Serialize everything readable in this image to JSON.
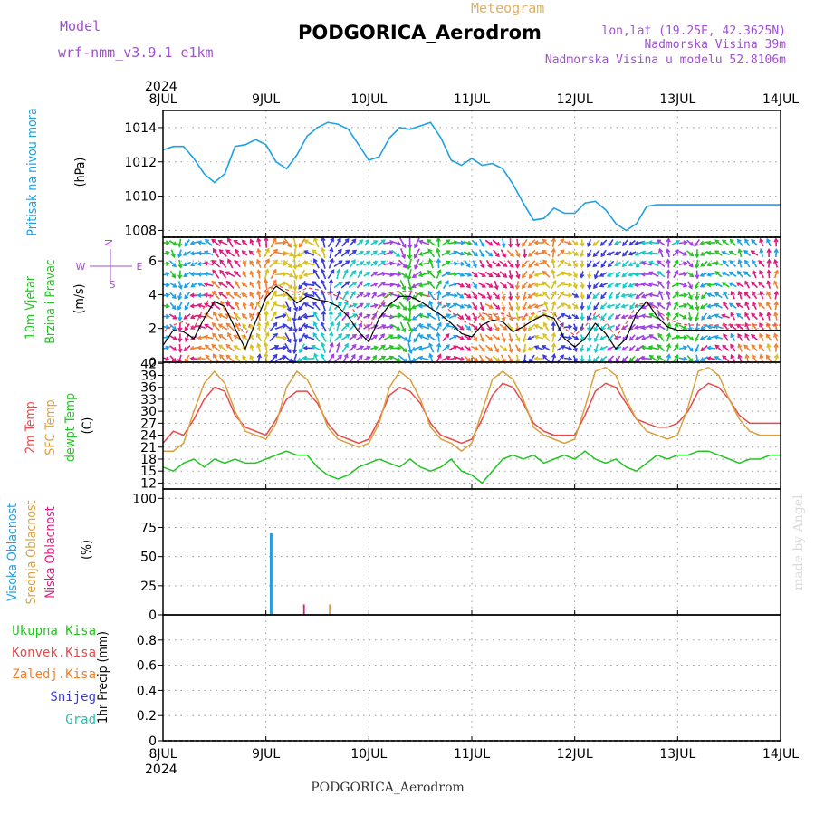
{
  "header": {
    "model_label": "Model",
    "model_name": "wrf-nmm_v3.9.1 e1km",
    "meteogram_label": "Meteogram",
    "station_title": "PODGORICA_Aerodrom",
    "lonlat": "lon,lat (19.25E, 42.3625N)",
    "elevation": "Nadmorska Visina 39m",
    "model_elevation": "Nadmorska Visina u modelu 52.8106m"
  },
  "footer": {
    "station": "PODGORICA_Aerodrom",
    "credit": "made by Angel"
  },
  "time_axis": {
    "year": "2024",
    "ticks": [
      "8JUL",
      "9JUL",
      "10JUL",
      "11JUL",
      "12JUL",
      "13JUL",
      "14JUL"
    ]
  },
  "colors": {
    "pressure": "#1ea0e6",
    "temp2m": "#e84a4a",
    "sfc_temp": "#d9a040",
    "dewpt": "#22c422",
    "wind_speed": "#000000",
    "wind_gust": "#e84a4a",
    "high_cloud": "#1ea0e6",
    "mid_cloud": "#d9a040",
    "low_cloud": "#e0197d",
    "total_precip": "#22c422",
    "conv_precip": "#e84a4a",
    "frz_precip": "#f08030",
    "snow": "#3a3ad8",
    "graupel": "#22c0b0",
    "header_purple": "#a050d0",
    "header_orange": "#e0b060"
  },
  "chart_data": [
    {
      "panel": "pressure",
      "type": "line",
      "ylabel": [
        "Pritisak na nivou mora",
        "(hPa)"
      ],
      "ylim": [
        1007.6,
        1015.0
      ],
      "yticks": [
        1008,
        1010,
        1012,
        1014
      ],
      "x": [
        0,
        0.1,
        0.2,
        0.3,
        0.4,
        0.5,
        0.6,
        0.7,
        0.8,
        0.9,
        1.0,
        1.1,
        1.2,
        1.3,
        1.4,
        1.5,
        1.6,
        1.7,
        1.8,
        1.9,
        2.0,
        2.1,
        2.2,
        2.3,
        2.4,
        2.5,
        2.6,
        2.7,
        2.8,
        2.9,
        3.0,
        3.1,
        3.2,
        3.3,
        3.4,
        3.5,
        3.6,
        3.7,
        3.8,
        3.9,
        4.0,
        4.1,
        4.2,
        4.3,
        4.4,
        4.5,
        4.6,
        4.7,
        4.8,
        4.9,
        5.0,
        5.1,
        5.2,
        5.3,
        5.4,
        5.5,
        5.6,
        5.7,
        5.8,
        5.9,
        6.0
      ],
      "y": [
        1012.7,
        1012.9,
        1012.9,
        1012.2,
        1011.3,
        1010.8,
        1011.3,
        1012.9,
        1013.0,
        1013.3,
        1013.0,
        1012.0,
        1011.6,
        1012.4,
        1013.5,
        1014.0,
        1014.3,
        1014.2,
        1013.9,
        1013.0,
        1012.1,
        1012.3,
        1013.4,
        1014.0,
        1013.9,
        1014.1,
        1014.3,
        1013.4,
        1012.1,
        1011.8,
        1012.2,
        1011.8,
        1011.9,
        1011.6,
        1010.7,
        1009.6,
        1008.6,
        1008.7,
        1009.3,
        1009.0,
        1009.0,
        1009.6,
        1009.7,
        1009.2,
        1008.4,
        1008.0,
        1008.4,
        1009.4,
        1009.5,
        1009.5,
        1009.5,
        1009.5,
        1009.5,
        1009.5,
        1009.5,
        1009.5,
        1009.5,
        1009.5,
        1009.5,
        1009.5,
        1009.5
      ]
    },
    {
      "panel": "wind",
      "type": "line",
      "ylabel": [
        "10m Vjetar",
        "Brzina i Pravac",
        "(m/s)"
      ],
      "compass": {
        "n": "N",
        "s": "S",
        "e": "E",
        "w": "W"
      },
      "ylim": [
        0,
        7.4
      ],
      "yticks": [
        0,
        2,
        4,
        6
      ],
      "x": [
        0,
        0.1,
        0.2,
        0.3,
        0.4,
        0.5,
        0.6,
        0.7,
        0.8,
        0.9,
        1.0,
        1.1,
        1.2,
        1.3,
        1.4,
        1.5,
        1.6,
        1.7,
        1.8,
        1.9,
        2.0,
        2.1,
        2.2,
        2.3,
        2.4,
        2.5,
        2.6,
        2.7,
        2.8,
        2.9,
        3.0,
        3.1,
        3.2,
        3.3,
        3.4,
        3.5,
        3.6,
        3.7,
        3.8,
        3.9,
        4.0,
        4.1,
        4.2,
        4.3,
        4.4,
        4.5,
        4.6,
        4.7,
        4.8,
        4.9,
        5.0,
        5.1,
        5.2,
        5.3,
        5.4,
        5.5,
        5.6,
        5.7,
        5.8,
        5.9,
        6.0
      ],
      "speed": [
        1.0,
        1.9,
        1.8,
        1.4,
        2.6,
        3.6,
        3.3,
        2.0,
        0.8,
        2.4,
        3.8,
        4.5,
        4.1,
        3.5,
        3.9,
        3.7,
        3.6,
        3.3,
        2.7,
        1.8,
        1.2,
        2.6,
        3.4,
        3.9,
        3.9,
        3.6,
        3.2,
        2.8,
        2.3,
        1.7,
        1.5,
        2.2,
        2.5,
        2.4,
        1.8,
        2.1,
        2.5,
        2.8,
        2.6,
        1.4,
        0.9,
        1.4,
        2.3,
        1.7,
        0.8,
        1.4,
        2.9,
        3.6,
        2.7,
        2.1,
        1.9,
        1.9,
        1.9,
        1.9,
        1.9,
        1.9,
        1.9,
        1.9,
        1.9,
        1.9,
        1.9
      ],
      "gust": [
        1.8,
        2.2,
        2.4,
        2.0,
        3.3,
        4.2,
        4.0,
        2.8,
        1.5,
        3.2,
        4.3,
        4.6,
        4.3,
        4.1,
        4.4,
        4.3,
        4.1,
        3.9,
        3.6,
        2.6,
        1.9,
        3.3,
        4.1,
        4.2,
        4.2,
        4.0,
        3.9,
        3.5,
        3.0,
        2.5,
        2.2,
        2.9,
        2.8,
        2.9,
        2.6,
        2.7,
        2.9,
        3.1,
        2.9,
        2.0,
        1.6,
        2.1,
        2.9,
        2.4,
        1.5,
        2.3,
        3.4,
        3.5,
        3.1,
        2.6,
        2.3,
        2.2,
        2.2,
        2.2,
        2.2,
        2.2,
        2.2,
        2.2,
        2.2,
        2.2,
        2.2
      ]
    },
    {
      "panel": "temperature",
      "type": "line",
      "ylabel": [
        "2m Temp",
        "SFC Temp",
        "dewpt Temp",
        "(C)"
      ],
      "ylim": [
        10.5,
        42.3
      ],
      "yticks": [
        12,
        15,
        18,
        21,
        24,
        27,
        30,
        33,
        36,
        39,
        42
      ],
      "x": [
        0,
        0.1,
        0.2,
        0.3,
        0.4,
        0.5,
        0.6,
        0.7,
        0.8,
        0.9,
        1.0,
        1.1,
        1.2,
        1.3,
        1.4,
        1.5,
        1.6,
        1.7,
        1.8,
        1.9,
        2.0,
        2.1,
        2.2,
        2.3,
        2.4,
        2.5,
        2.6,
        2.7,
        2.8,
        2.9,
        3.0,
        3.1,
        3.2,
        3.3,
        3.4,
        3.5,
        3.6,
        3.7,
        3.8,
        3.9,
        4.0,
        4.1,
        4.2,
        4.3,
        4.4,
        4.5,
        4.6,
        4.7,
        4.8,
        4.9,
        5.0,
        5.1,
        5.2,
        5.3,
        5.4,
        5.5,
        5.6,
        5.7,
        5.8,
        5.9,
        6.0
      ],
      "series": [
        {
          "name": "2m Temp",
          "key": "temp2m",
          "values": [
            22,
            25,
            24,
            28,
            33,
            36,
            35,
            29,
            26,
            25,
            24,
            28,
            33,
            35,
            35,
            32,
            27,
            24,
            23,
            22,
            23,
            28,
            34,
            36,
            35,
            32,
            27,
            24,
            23,
            22,
            23,
            28,
            34,
            37,
            36,
            32,
            27,
            25,
            24,
            24,
            24,
            29,
            35,
            37,
            36,
            32,
            28,
            27,
            26,
            26,
            27,
            30,
            35,
            37,
            36,
            33,
            29,
            27,
            27,
            27,
            27
          ]
        },
        {
          "name": "SFC Temp",
          "key": "sfc_temp",
          "values": [
            20,
            20,
            22,
            30,
            37,
            40,
            37,
            30,
            25,
            24,
            23,
            27,
            36,
            40,
            38,
            33,
            26,
            23,
            22,
            21,
            22,
            27,
            36,
            40,
            38,
            33,
            26,
            23,
            22,
            20,
            22,
            30,
            38,
            40,
            38,
            33,
            26,
            24,
            23,
            22,
            23,
            31,
            40,
            41,
            39,
            33,
            28,
            25,
            24,
            23,
            24,
            31,
            40,
            41,
            39,
            33,
            28,
            25,
            24,
            24,
            24
          ]
        },
        {
          "name": "dewpt Temp",
          "key": "dewpt",
          "values": [
            16,
            15,
            17,
            18,
            16,
            18,
            17,
            18,
            17,
            17,
            18,
            19,
            20,
            19,
            19,
            16,
            14,
            13,
            14,
            16,
            17,
            18,
            17,
            16,
            18,
            16,
            15,
            16,
            18,
            15,
            14,
            12,
            15,
            18,
            19,
            18,
            19,
            17,
            18,
            19,
            18,
            20,
            18,
            17,
            18,
            16,
            15,
            17,
            19,
            18,
            19,
            19,
            20,
            20,
            19,
            18,
            17,
            18,
            18,
            19,
            19
          ]
        }
      ]
    },
    {
      "panel": "cloud",
      "type": "bar",
      "ylabel": [
        "Visoka Oblacnost",
        "Srednja Oblacnost",
        "Niska Oblacnost",
        "(%)"
      ],
      "ylim": [
        0,
        108
      ],
      "yticks": [
        0,
        25,
        50,
        75,
        100
      ],
      "bars": [
        {
          "x": 1.05,
          "key": "high_cloud",
          "value": 70
        },
        {
          "x": 1.37,
          "key": "low_cloud",
          "value": 9
        },
        {
          "x": 1.62,
          "key": "mid_cloud",
          "value": 9
        }
      ]
    },
    {
      "panel": "precip",
      "type": "line",
      "ylabel": [
        "1hr Precip (mm)"
      ],
      "legend": [
        "Ukupna Kisa",
        "Konvek.Kisa",
        "Zaledj.Kisa",
        "Snijeg",
        "Grad"
      ],
      "ylim": [
        0,
        1.0
      ],
      "yticks": [
        0,
        0.2,
        0.4,
        0.6,
        0.8
      ],
      "values": []
    }
  ]
}
